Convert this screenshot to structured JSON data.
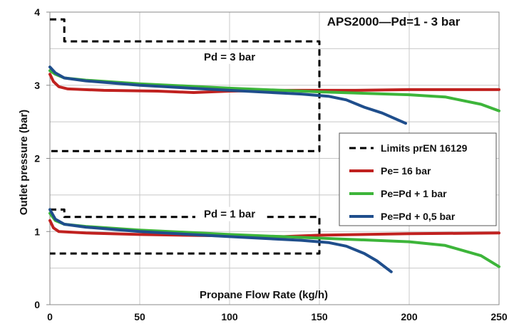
{
  "chart_data": {
    "type": "line",
    "title": "APS2000—Pd=1 - 3 bar",
    "xlabel": "Propane Flow Rate (kg/h)",
    "ylabel": "Outlet pressure (bar)",
    "xlim": [
      0,
      250
    ],
    "ylim": [
      0,
      4
    ],
    "x_ticks": [
      0,
      50,
      100,
      150,
      200,
      250
    ],
    "y_ticks": [
      0,
      1,
      2,
      3,
      4
    ],
    "grid": true,
    "legend_position": "right",
    "annotations": [
      {
        "text": "Pd = 3 bar",
        "x": 100,
        "y": 3.35
      },
      {
        "text": "Pd = 1 bar",
        "x": 100,
        "y": 1.2
      }
    ],
    "series": [
      {
        "name": "Limits prEN 16129",
        "color": "#000000",
        "style": "dashed",
        "segments": [
          [
            [
              0,
              3.9
            ],
            [
              8,
              3.9
            ],
            [
              8,
              3.6
            ],
            [
              150,
              3.6
            ],
            [
              150,
              2.1
            ],
            [
              0,
              2.1
            ]
          ],
          [
            [
              0,
              1.3
            ],
            [
              8,
              1.3
            ],
            [
              8,
              1.2
            ],
            [
              150,
              1.2
            ],
            [
              150,
              0.7
            ],
            [
              0,
              0.7
            ]
          ]
        ]
      },
      {
        "name": "Pe= 16 bar",
        "color": "#c0211f",
        "style": "solid",
        "segments": [
          [
            [
              0,
              3.15
            ],
            [
              2,
              3.05
            ],
            [
              5,
              2.98
            ],
            [
              10,
              2.95
            ],
            [
              30,
              2.93
            ],
            [
              60,
              2.92
            ],
            [
              80,
              2.9
            ],
            [
              100,
              2.92
            ],
            [
              130,
              2.93
            ],
            [
              150,
              2.93
            ],
            [
              170,
              2.93
            ],
            [
              200,
              2.94
            ],
            [
              250,
              2.94
            ]
          ],
          [
            [
              0,
              1.15
            ],
            [
              2,
              1.05
            ],
            [
              5,
              1.0
            ],
            [
              20,
              0.98
            ],
            [
              50,
              0.96
            ],
            [
              100,
              0.94
            ],
            [
              130,
              0.93
            ],
            [
              150,
              0.95
            ],
            [
              200,
              0.97
            ],
            [
              250,
              0.98
            ]
          ]
        ]
      },
      {
        "name": "Pe=Pd + 1 bar",
        "color": "#3db53a",
        "style": "solid",
        "segments": [
          [
            [
              0,
              3.2
            ],
            [
              3,
              3.15
            ],
            [
              8,
              3.1
            ],
            [
              20,
              3.07
            ],
            [
              50,
              3.02
            ],
            [
              100,
              2.96
            ],
            [
              150,
              2.91
            ],
            [
              200,
              2.87
            ],
            [
              220,
              2.84
            ],
            [
              240,
              2.74
            ],
            [
              250,
              2.65
            ]
          ],
          [
            [
              0,
              1.25
            ],
            [
              3,
              1.15
            ],
            [
              8,
              1.1
            ],
            [
              20,
              1.07
            ],
            [
              50,
              1.02
            ],
            [
              100,
              0.96
            ],
            [
              150,
              0.91
            ],
            [
              200,
              0.86
            ],
            [
              220,
              0.81
            ],
            [
              240,
              0.67
            ],
            [
              250,
              0.52
            ]
          ]
        ]
      },
      {
        "name": "Pe=Pd + 0,5 bar",
        "color": "#1f4e8c",
        "style": "solid",
        "segments": [
          [
            [
              0,
              3.25
            ],
            [
              3,
              3.17
            ],
            [
              8,
              3.1
            ],
            [
              20,
              3.06
            ],
            [
              50,
              3.0
            ],
            [
              100,
              2.93
            ],
            [
              140,
              2.88
            ],
            [
              155,
              2.85
            ],
            [
              165,
              2.8
            ],
            [
              175,
              2.7
            ],
            [
              185,
              2.62
            ],
            [
              198,
              2.48
            ]
          ],
          [
            [
              0,
              1.3
            ],
            [
              3,
              1.17
            ],
            [
              8,
              1.1
            ],
            [
              20,
              1.06
            ],
            [
              50,
              1.0
            ],
            [
              100,
              0.93
            ],
            [
              140,
              0.88
            ],
            [
              155,
              0.85
            ],
            [
              165,
              0.8
            ],
            [
              175,
              0.7
            ],
            [
              182,
              0.6
            ],
            [
              190,
              0.45
            ]
          ]
        ]
      }
    ]
  }
}
